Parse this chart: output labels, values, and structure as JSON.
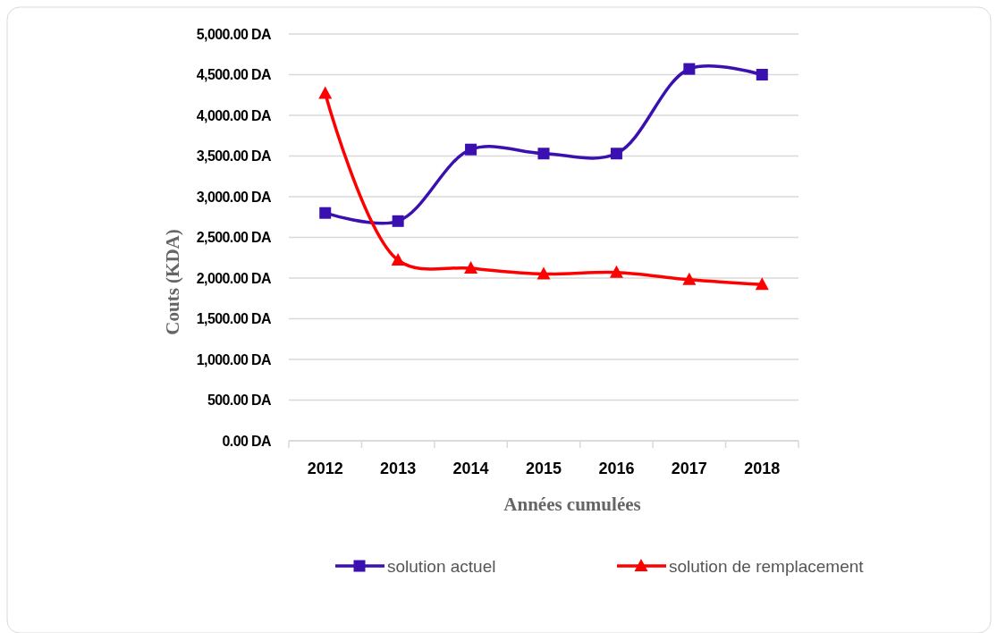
{
  "chart_data": {
    "type": "line",
    "xlabel": "Années cumulées",
    "ylabel": "Couts (KDA)",
    "categories": [
      "2012",
      "2013",
      "2014",
      "2015",
      "2016",
      "2017",
      "2018"
    ],
    "series": [
      {
        "name": "solution actuel",
        "color": "#3a10b0",
        "marker": "square",
        "values": [
          2800,
          2700,
          3580,
          3530,
          3530,
          4570,
          4500
        ]
      },
      {
        "name": "solution de remplacement",
        "color": "#ff0000",
        "marker": "triangle",
        "values": [
          4270,
          2220,
          2120,
          2050,
          2070,
          1980,
          1920
        ]
      }
    ],
    "ylim": [
      0,
      5000
    ],
    "yticks": [
      {
        "value": 0,
        "label": "0.00 DA"
      },
      {
        "value": 500,
        "label": "500.00 DA"
      },
      {
        "value": 1000,
        "label": "1,000.00 DA"
      },
      {
        "value": 1500,
        "label": "1,500.00 DA"
      },
      {
        "value": 2000,
        "label": "2,000.00 DA"
      },
      {
        "value": 2500,
        "label": "2,500.00 DA"
      },
      {
        "value": 3000,
        "label": "3,000.00 DA"
      },
      {
        "value": 3500,
        "label": "3,500.00 DA"
      },
      {
        "value": 4000,
        "label": "4,000.00 DA"
      },
      {
        "value": 4500,
        "label": "4,500.00 DA"
      },
      {
        "value": 5000,
        "label": "5,000.00 DA"
      }
    ],
    "grid": "y",
    "legend": "bottom",
    "line_style": "solid"
  }
}
